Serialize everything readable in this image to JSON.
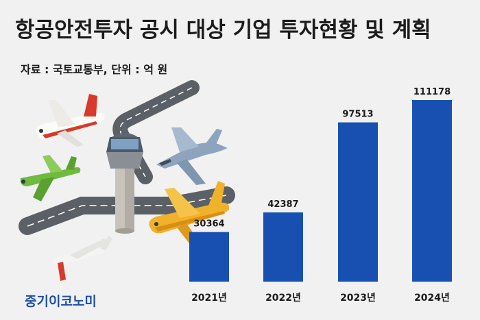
{
  "title": "항공안전투자 공시 대상 기업 투자현황 및 계획",
  "source": "자료 : 국토교통부, 단위 : 억 원",
  "brand": "중기이코노미",
  "colors": {
    "bar": "#1750b0",
    "background": "#f1f1f1",
    "brand": "#1f4fa8"
  },
  "chart_data": {
    "type": "bar",
    "categories": [
      "2021년",
      "2022년",
      "2023년",
      "2024년"
    ],
    "values": [
      30364,
      42387,
      97513,
      111178
    ],
    "unit": "억 원",
    "ylim": [
      0,
      111178
    ],
    "grid": false,
    "legend": "none"
  }
}
